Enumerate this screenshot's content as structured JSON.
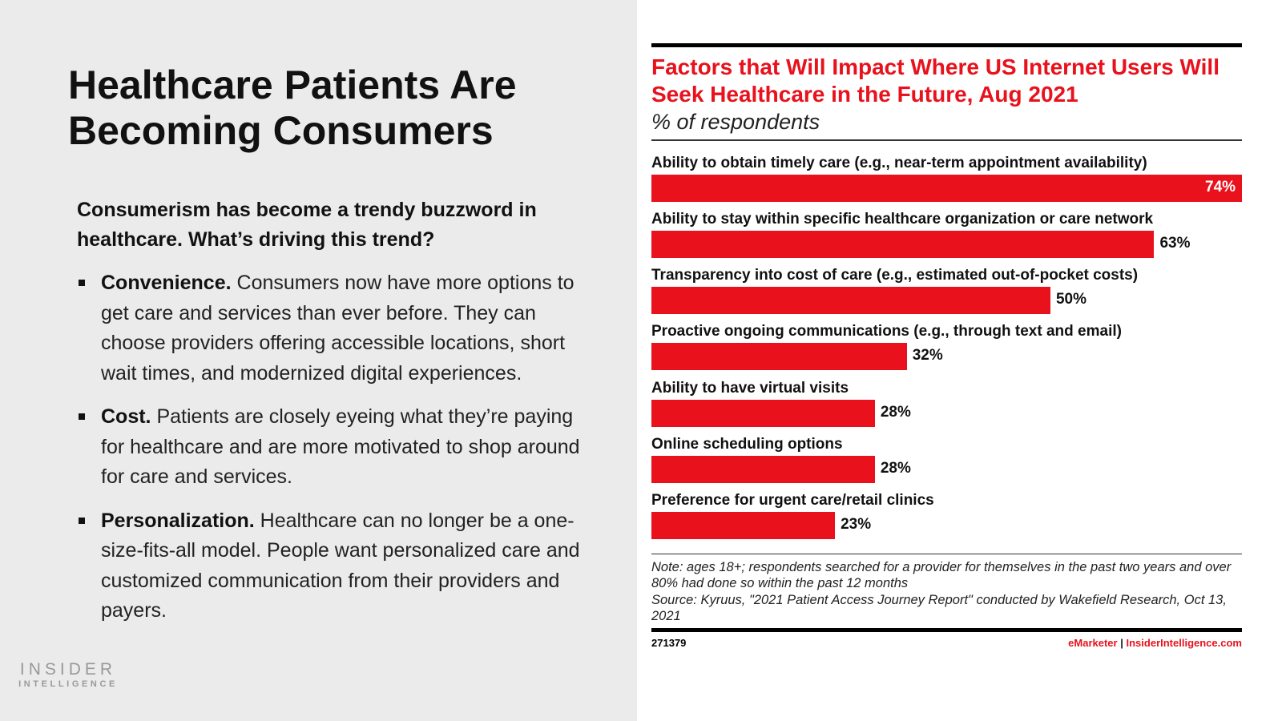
{
  "slide": {
    "title": "Healthcare Patients Are Becoming Consumers",
    "intro": "Consumerism has become a trendy buzzword in healthcare. What’s driving this trend?",
    "bullets": [
      {
        "head": "Convenience.",
        "text": " Consumers now have more options to get care and services than ever before. They can choose providers offering accessible locations, short wait times, and modernized digital experiences."
      },
      {
        "head": "Cost.",
        "text": " Patients are closely eyeing what they’re paying for healthcare and are more motivated to shop around for care and services."
      },
      {
        "head": "Personalization.",
        "text": " Healthcare can no longer be a one-size-fits-all model. People want personalized care and customized communication from their providers and payers."
      }
    ],
    "logo": {
      "line1": "INSIDER",
      "line2": "INTELLIGENCE"
    }
  },
  "chart_data": {
    "type": "bar",
    "orientation": "horizontal",
    "title": "Factors that Will Impact Where US Internet Users Will Seek Healthcare in the Future, Aug 2021",
    "subtitle": "% of respondents",
    "categories": [
      "Ability to obtain timely care (e.g., near-term appointment availability)",
      "Ability to stay within specific healthcare organization or care network",
      "Transparency into cost of care (e.g., estimated out-of-pocket costs)",
      "Proactive ongoing communications (e.g., through text and email)",
      "Ability to have virtual visits",
      "Online scheduling options",
      "Preference for urgent care/retail clinics"
    ],
    "values": [
      74,
      63,
      50,
      32,
      28,
      28,
      23
    ],
    "value_labels": [
      "74%",
      "63%",
      "50%",
      "32%",
      "28%",
      "28%",
      "23%"
    ],
    "xlim": [
      0,
      74
    ],
    "bar_color": "#e8111c",
    "note": "Note: ages 18+; respondents searched for a provider for themselves in the past two years and over 80% had done so within the past 12 months",
    "source": "Source: Kyruus, \"2021 Patient Access Journey Report\" conducted by Wakefield Research, Oct 13, 2021",
    "chart_id": "271379",
    "brand": "eMarketer",
    "separator": "|",
    "site": "InsiderIntelligence.com"
  }
}
